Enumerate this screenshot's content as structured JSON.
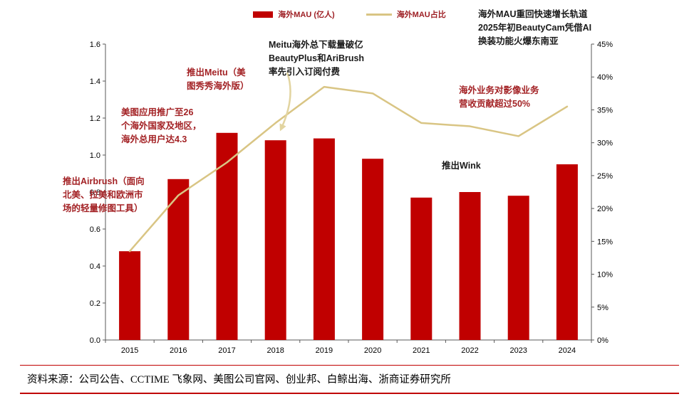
{
  "chart_data": {
    "type": "bar",
    "title": "",
    "categories": [
      "2015",
      "2016",
      "2017",
      "2018",
      "2019",
      "2020",
      "2021",
      "2022",
      "2023",
      "2024"
    ],
    "series": [
      {
        "name": "海外MAU (亿人)",
        "kind": "bar",
        "axis": "left",
        "color": "#C00000",
        "values": [
          0.48,
          0.87,
          1.12,
          1.08,
          1.09,
          0.98,
          0.77,
          0.8,
          0.78,
          0.95
        ]
      },
      {
        "name": "海外MAU占比",
        "kind": "line",
        "axis": "right",
        "color": "#D9C584",
        "values": [
          13.5,
          22,
          27,
          33,
          38.5,
          37.5,
          33,
          32.5,
          31,
          35.5
        ]
      }
    ],
    "left_axis": {
      "min": 0,
      "max": 1.6,
      "step": 0.2,
      "decimals": 1
    },
    "right_axis": {
      "min": 0,
      "max": 45,
      "step": 5,
      "suffix": "%"
    },
    "grid": false,
    "legend_position": "top"
  },
  "colors": {
    "bar_red": "#C00000",
    "line_tan": "#D9C584",
    "arrow_tan": "#E2D4A0",
    "annotation_red": "#A32225",
    "annotation_black": "#1a1a1a",
    "divider_red": "#C00000"
  },
  "annotations": {
    "airbrush": {
      "text": "推出Airbrush（面向\n北美、拉美和欧洲市\n场的轻量修图工具）",
      "color": "#A32225"
    },
    "promo": {
      "text": "美图应用推广至26\n个海外国家及地区，\n海外总用户达4.3",
      "color": "#A32225"
    },
    "meitu_launch": {
      "text": "推出Meitu（美\n图秀秀海外版）",
      "color": "#A32225"
    },
    "meitu_downloads": {
      "text": "Meitu海外总下载量破亿\nBeautyPlus和AriBrush\n率先引入订阅付费",
      "color": "#1a1a1a"
    },
    "wink": {
      "text": "推出Wink",
      "color": "#1a1a1a"
    },
    "revenue": {
      "text": "海外业务对影像业务\n营收贡献超过50%",
      "color": "#A32225"
    },
    "mau_growth": {
      "text": "海外MAU重回快速增长轨道\n2025年初BeautyCam凭借AI\n换装功能火爆东南亚",
      "color": "#1a1a1a"
    }
  },
  "source": {
    "text": "资料来源：公司公告、CCTIME 飞象网、美图公司官网、创业邦、白鲸出海、浙商证券研究所"
  }
}
